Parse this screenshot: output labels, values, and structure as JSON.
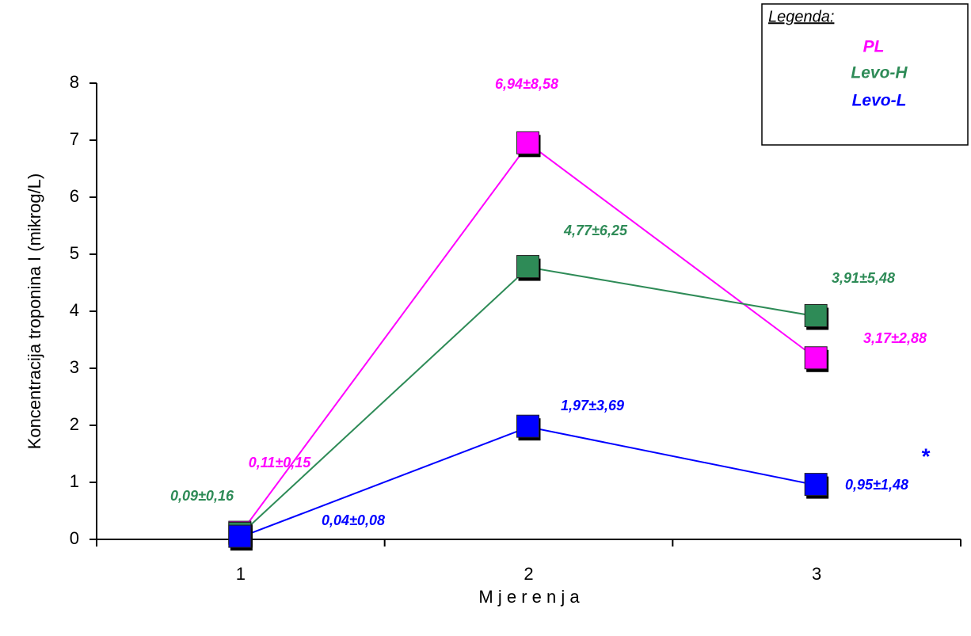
{
  "chart_data": {
    "type": "line",
    "categories": [
      "1",
      "2",
      "3"
    ],
    "series": [
      {
        "name": "PL",
        "color": "#ff00ff",
        "values": [
          0.11,
          6.94,
          3.17
        ],
        "value_labels": [
          "0,11±0,15",
          "6,94±8,58",
          "3,17±2,88"
        ]
      },
      {
        "name": "Levo-H",
        "color": "#2e8b57",
        "values": [
          0.09,
          4.77,
          3.91
        ],
        "value_labels": [
          "0,09±0,16",
          "4,77±6,25",
          "3,91±5,48"
        ]
      },
      {
        "name": "Levo-L",
        "color": "#0000ff",
        "values": [
          0.04,
          1.97,
          0.95
        ],
        "value_labels": [
          "0,04±0,08",
          "1,97±3,69",
          "0,95±1,48"
        ]
      }
    ],
    "ylim": [
      0,
      8
    ],
    "yticks": [
      0,
      1,
      2,
      3,
      4,
      5,
      6,
      7,
      8
    ],
    "x_label": "M j e r e n j a",
    "y_label": "Koncentracija troponina I (mikrog/L)",
    "legend_title": "Legenda:",
    "annotation": "*",
    "legend": "top-right"
  }
}
